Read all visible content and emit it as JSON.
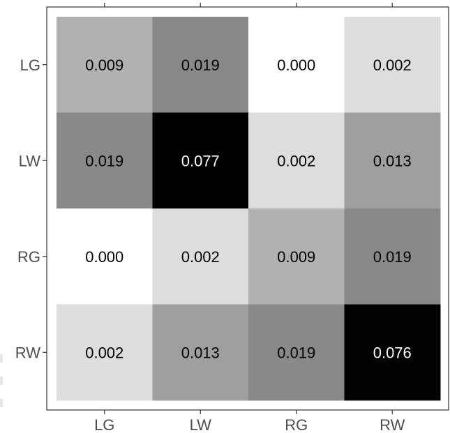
{
  "chart_data": {
    "type": "heatmap",
    "title": "",
    "xlabel": "",
    "ylabel": "",
    "x_categories": [
      "LG",
      "LW",
      "RG",
      "RW"
    ],
    "y_categories": [
      "LG",
      "LW",
      "RG",
      "RW"
    ],
    "values": [
      [
        0.009,
        0.019,
        0.0,
        0.002
      ],
      [
        0.019,
        0.077,
        0.002,
        0.013
      ],
      [
        0.0,
        0.002,
        0.009,
        0.019
      ],
      [
        0.002,
        0.013,
        0.019,
        0.076
      ]
    ],
    "labels": [
      [
        "0.009",
        "0.019",
        "0.000",
        "0.002"
      ],
      [
        "0.019",
        "0.077",
        "0.002",
        "0.013"
      ],
      [
        "0.000",
        "0.002",
        "0.009",
        "0.019"
      ],
      [
        "0.002",
        "0.013",
        "0.019",
        "0.076"
      ]
    ],
    "color_scale": {
      "low": "#ffffff",
      "high": "#000000"
    },
    "label_text_colors": {
      "on_light": "#000000",
      "on_dark": "#ffffff"
    },
    "legend": "none",
    "grid": false
  }
}
